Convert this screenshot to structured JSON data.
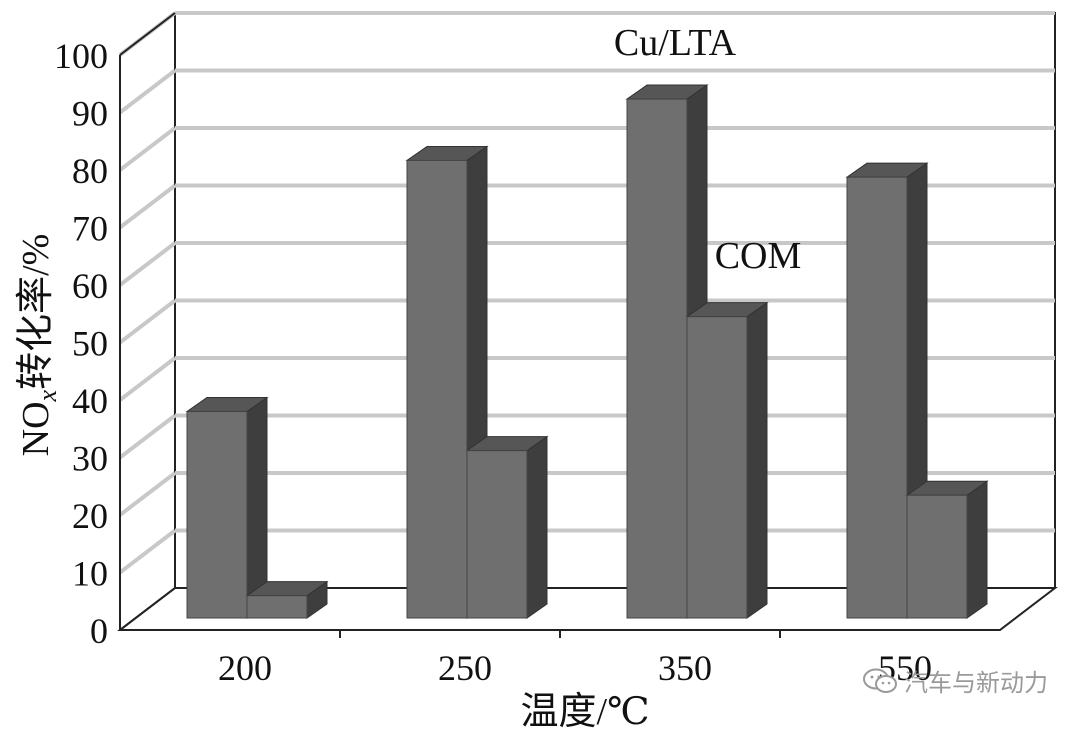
{
  "chart_data": {
    "type": "bar",
    "categories": [
      "200",
      "250",
      "350",
      "550"
    ],
    "series": [
      {
        "name": "Cu/LTA",
        "values": [
          37,
          82,
          93,
          79
        ]
      },
      {
        "name": "COM",
        "values": [
          4,
          30,
          54,
          22
        ]
      }
    ],
    "title": "",
    "ylabel_main": "NO",
    "ylabel_sub": "x",
    "ylabel_rest": "转化率/%",
    "xlabel": "温度/℃",
    "ylim": [
      0,
      100
    ],
    "yticks": [
      "0",
      "10",
      "20",
      "30",
      "40",
      "50",
      "60",
      "70",
      "80",
      "90",
      "100"
    ],
    "grid": true,
    "style": "3d",
    "colors": {
      "bar_front": "#6f6f6f",
      "bar_side": "#3e3e3e",
      "bar_top": "#565656",
      "grid": "#c8c8c8",
      "axis": "#222222"
    }
  },
  "watermark": {
    "text": "汽车与新动力",
    "icon": "wechat-icon"
  }
}
